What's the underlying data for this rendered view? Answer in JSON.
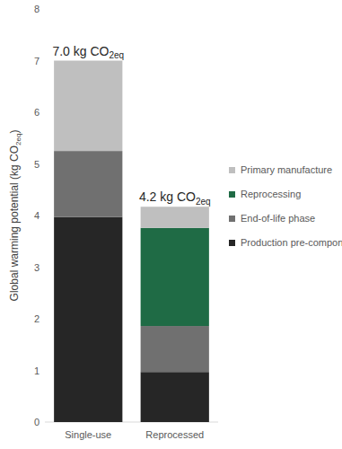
{
  "chart_data": {
    "type": "bar",
    "stacked": true,
    "categories": [
      "Single-use",
      "Reprocessed"
    ],
    "series": [
      {
        "name": "Production pre-components",
        "color": "#262626",
        "values": [
          3.97,
          0.97
        ]
      },
      {
        "name": "End-of-life phase",
        "color": "#707070",
        "values": [
          1.28,
          0.89
        ]
      },
      {
        "name": "Reprocessing",
        "color": "#1f6b45",
        "values": [
          0,
          1.9
        ]
      },
      {
        "name": "Primary manufacture",
        "color": "#bfbfbf",
        "values": [
          1.75,
          0.41
        ]
      }
    ],
    "y_label": "Global warming potential (kg CO2eq)",
    "ylim": [
      0,
      8
    ],
    "yticks": [
      0,
      1,
      2,
      3,
      4,
      5,
      6,
      7,
      8
    ],
    "grid": false,
    "legend": "right",
    "annotations": [
      {
        "text": "7.0 kg CO2eq",
        "category": "Single-use"
      },
      {
        "text": "4.2 kg CO2eq",
        "category": "Reprocessed"
      }
    ]
  }
}
